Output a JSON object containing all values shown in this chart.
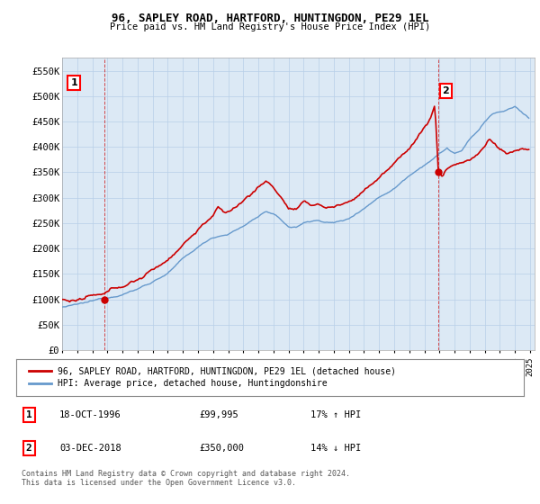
{
  "title": "96, SAPLEY ROAD, HARTFORD, HUNTINGDON, PE29 1EL",
  "subtitle": "Price paid vs. HM Land Registry's House Price Index (HPI)",
  "ylim": [
    0,
    575000
  ],
  "yticks": [
    0,
    50000,
    100000,
    150000,
    200000,
    250000,
    300000,
    350000,
    400000,
    450000,
    500000,
    550000
  ],
  "ytick_labels": [
    "£0",
    "£50K",
    "£100K",
    "£150K",
    "£200K",
    "£250K",
    "£300K",
    "£350K",
    "£400K",
    "£450K",
    "£500K",
    "£550K"
  ],
  "hpi_color": "#6699cc",
  "price_color": "#cc0000",
  "chart_bg": "#dce9f5",
  "marker1_year": 1996.8,
  "marker1_value": 99995,
  "marker2_year": 2018.92,
  "marker2_value": 350000,
  "legend_label1": "96, SAPLEY ROAD, HARTFORD, HUNTINGDON, PE29 1EL (detached house)",
  "legend_label2": "HPI: Average price, detached house, Huntingdonshire",
  "table_rows": [
    {
      "num": "1",
      "date": "18-OCT-1996",
      "price": "£99,995",
      "hpi": "17% ↑ HPI"
    },
    {
      "num": "2",
      "date": "03-DEC-2018",
      "price": "£350,000",
      "hpi": "14% ↓ HPI"
    }
  ],
  "footnote": "Contains HM Land Registry data © Crown copyright and database right 2024.\nThis data is licensed under the Open Government Licence v3.0.",
  "background_color": "#ffffff",
  "grid_color": "#b8cfe8",
  "hpi_linewidth": 1.0,
  "price_linewidth": 1.2
}
